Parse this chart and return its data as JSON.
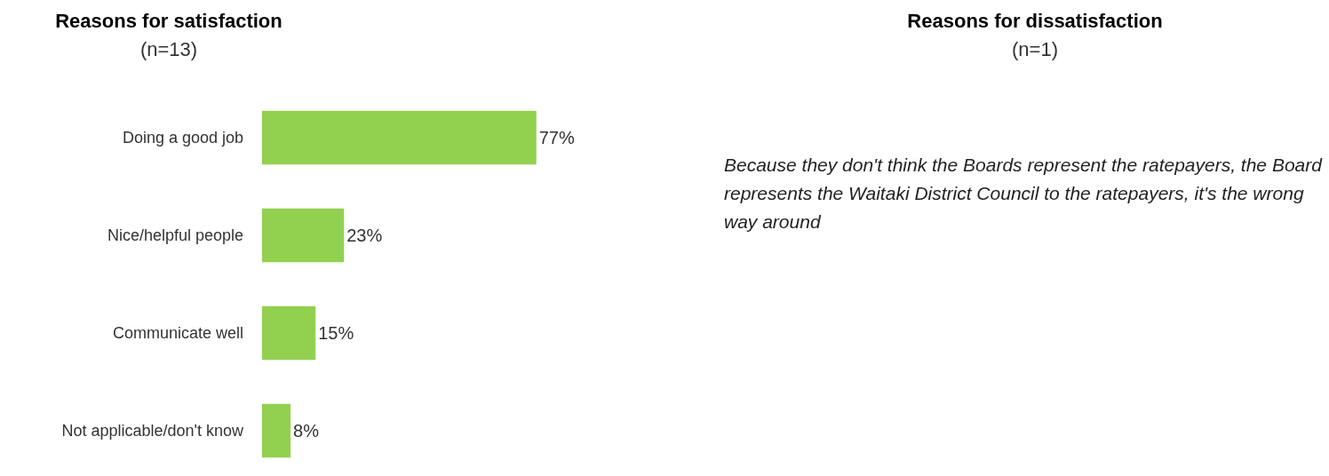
{
  "chart_data": [
    {
      "type": "bar",
      "orientation": "horizontal",
      "title": "Reasons for satisfaction",
      "subtitle": "(n=13)",
      "categories": [
        "Doing a good job",
        "Nice/helpful people",
        "Communicate well",
        "Not applicable/don't know"
      ],
      "values": [
        77,
        23,
        15,
        8
      ],
      "value_labels": [
        "77%",
        "23%",
        "15%",
        "8%"
      ],
      "color": "#92d050"
    },
    {
      "type": "other",
      "title": "Reasons for dissatisfaction",
      "subtitle": "(n=1)",
      "annotations": [
        "Because they don't think the Boards represent the ratepayers, the Board represents the Waitaki District Council to the ratepayers, it's the wrong way around"
      ]
    }
  ]
}
